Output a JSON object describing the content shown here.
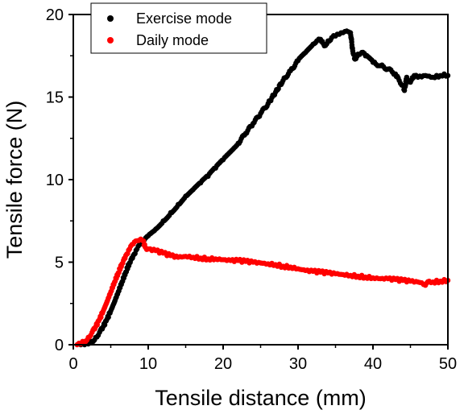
{
  "chart_data": {
    "type": "scatter",
    "xlabel": "Tensile distance (mm)",
    "ylabel": "Tensile force (N)",
    "xlim": [
      0,
      50
    ],
    "ylim": [
      0,
      20
    ],
    "x_ticks": [
      0,
      10,
      20,
      30,
      40,
      50
    ],
    "y_ticks": [
      0,
      5,
      10,
      15,
      20
    ],
    "grid": false,
    "legend_position": "top-left",
    "series": [
      {
        "name": "Exercise mode",
        "color": "#000000",
        "points": [
          [
            1.0,
            0.0
          ],
          [
            1.5,
            0.0
          ],
          [
            2.0,
            0.05
          ],
          [
            2.5,
            0.2
          ],
          [
            3.0,
            0.45
          ],
          [
            3.5,
            0.75
          ],
          [
            4.0,
            1.1
          ],
          [
            4.5,
            1.55
          ],
          [
            5.0,
            2.05
          ],
          [
            5.5,
            2.6
          ],
          [
            6.0,
            3.2
          ],
          [
            6.5,
            3.8
          ],
          [
            7.0,
            4.4
          ],
          [
            7.5,
            4.95
          ],
          [
            8.0,
            5.4
          ],
          [
            8.5,
            5.8
          ],
          [
            9.0,
            6.1
          ],
          [
            9.5,
            6.35
          ],
          [
            10.0,
            6.6
          ],
          [
            11.0,
            7.0
          ],
          [
            12.0,
            7.5
          ],
          [
            13.0,
            8.0
          ],
          [
            14.0,
            8.5
          ],
          [
            15.0,
            9.0
          ],
          [
            16.0,
            9.4
          ],
          [
            17.0,
            9.8
          ],
          [
            18.0,
            10.2
          ],
          [
            19.0,
            10.7
          ],
          [
            20.0,
            11.2
          ],
          [
            21.0,
            11.7
          ],
          [
            22.0,
            12.2
          ],
          [
            23.0,
            12.8
          ],
          [
            24.0,
            13.4
          ],
          [
            25.0,
            14.0
          ],
          [
            26.0,
            14.6
          ],
          [
            27.0,
            15.3
          ],
          [
            28.0,
            16.0
          ],
          [
            29.0,
            16.6
          ],
          [
            30.0,
            17.2
          ],
          [
            31.0,
            17.7
          ],
          [
            32.0,
            18.2
          ],
          [
            32.5,
            18.4
          ],
          [
            33.0,
            18.5
          ],
          [
            33.5,
            18.1
          ],
          [
            34.0,
            18.4
          ],
          [
            34.5,
            18.6
          ],
          [
            35.0,
            18.7
          ],
          [
            35.5,
            18.8
          ],
          [
            36.0,
            18.9
          ],
          [
            36.5,
            19.0
          ],
          [
            37.0,
            18.9
          ],
          [
            37.3,
            17.8
          ],
          [
            37.6,
            17.3
          ],
          [
            38.0,
            17.6
          ],
          [
            38.5,
            17.7
          ],
          [
            39.0,
            17.5
          ],
          [
            40.0,
            17.1
          ],
          [
            41.0,
            16.9
          ],
          [
            42.0,
            16.7
          ],
          [
            43.0,
            16.4
          ],
          [
            43.5,
            16.0
          ],
          [
            44.0,
            15.7
          ],
          [
            44.2,
            15.4
          ],
          [
            44.5,
            16.2
          ],
          [
            45.0,
            15.9
          ],
          [
            45.5,
            16.3
          ],
          [
            46.0,
            16.2
          ],
          [
            47.0,
            16.3
          ],
          [
            48.0,
            16.2
          ],
          [
            49.0,
            16.3
          ],
          [
            49.5,
            16.4
          ],
          [
            50.0,
            16.3
          ]
        ]
      },
      {
        "name": "Daily mode",
        "color": "#ff0000",
        "points": [
          [
            0.5,
            0.0
          ],
          [
            1.0,
            0.05
          ],
          [
            1.5,
            0.2
          ],
          [
            2.0,
            0.45
          ],
          [
            2.5,
            0.75
          ],
          [
            3.0,
            1.1
          ],
          [
            3.5,
            1.55
          ],
          [
            4.0,
            2.05
          ],
          [
            4.5,
            2.6
          ],
          [
            5.0,
            3.2
          ],
          [
            5.5,
            3.8
          ],
          [
            6.0,
            4.35
          ],
          [
            6.5,
            4.9
          ],
          [
            7.0,
            5.4
          ],
          [
            7.5,
            5.8
          ],
          [
            8.0,
            6.1
          ],
          [
            8.5,
            6.3
          ],
          [
            9.0,
            6.4
          ],
          [
            9.3,
            6.3
          ],
          [
            9.6,
            5.9
          ],
          [
            10.0,
            5.8
          ],
          [
            11.0,
            5.7
          ],
          [
            12.0,
            5.55
          ],
          [
            13.0,
            5.4
          ],
          [
            14.0,
            5.3
          ],
          [
            15.0,
            5.35
          ],
          [
            16.0,
            5.3
          ],
          [
            17.0,
            5.25
          ],
          [
            18.0,
            5.2
          ],
          [
            19.0,
            5.2
          ],
          [
            20.0,
            5.15
          ],
          [
            21.0,
            5.1
          ],
          [
            22.0,
            5.1
          ],
          [
            23.0,
            5.05
          ],
          [
            24.0,
            5.0
          ],
          [
            25.0,
            4.95
          ],
          [
            26.0,
            4.9
          ],
          [
            27.0,
            4.85
          ],
          [
            28.0,
            4.75
          ],
          [
            29.0,
            4.7
          ],
          [
            30.0,
            4.6
          ],
          [
            31.0,
            4.5
          ],
          [
            32.0,
            4.45
          ],
          [
            33.0,
            4.4
          ],
          [
            34.0,
            4.35
          ],
          [
            35.0,
            4.3
          ],
          [
            36.0,
            4.25
          ],
          [
            37.0,
            4.2
          ],
          [
            38.0,
            4.15
          ],
          [
            39.0,
            4.1
          ],
          [
            40.0,
            4.05
          ],
          [
            41.0,
            4.0
          ],
          [
            42.0,
            4.0
          ],
          [
            43.0,
            3.95
          ],
          [
            44.0,
            3.9
          ],
          [
            45.0,
            3.85
          ],
          [
            46.0,
            3.8
          ],
          [
            46.5,
            3.75
          ],
          [
            47.0,
            3.6
          ],
          [
            47.5,
            3.85
          ],
          [
            48.0,
            3.8
          ],
          [
            49.0,
            3.85
          ],
          [
            50.0,
            3.9
          ]
        ]
      }
    ]
  }
}
